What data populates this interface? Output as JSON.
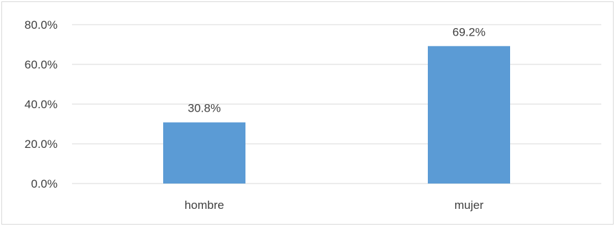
{
  "chart_data": {
    "type": "bar",
    "title": "",
    "xlabel": "",
    "ylabel": "",
    "categories": [
      "hombre",
      "mujer"
    ],
    "values": [
      30.8,
      69.2
    ],
    "data_labels": [
      "30.8%",
      "69.2%"
    ],
    "ylim": [
      0,
      80
    ],
    "yticks": [
      0,
      20,
      40,
      60,
      80
    ],
    "ytick_labels": [
      "0.0%",
      "20.0%",
      "40.0%",
      "60.0%",
      "80.0%"
    ],
    "grid": true,
    "legend": "none",
    "bar_color": "#5b9bd5",
    "grid_color": "#d9d9d9",
    "text_color": "#404040"
  }
}
